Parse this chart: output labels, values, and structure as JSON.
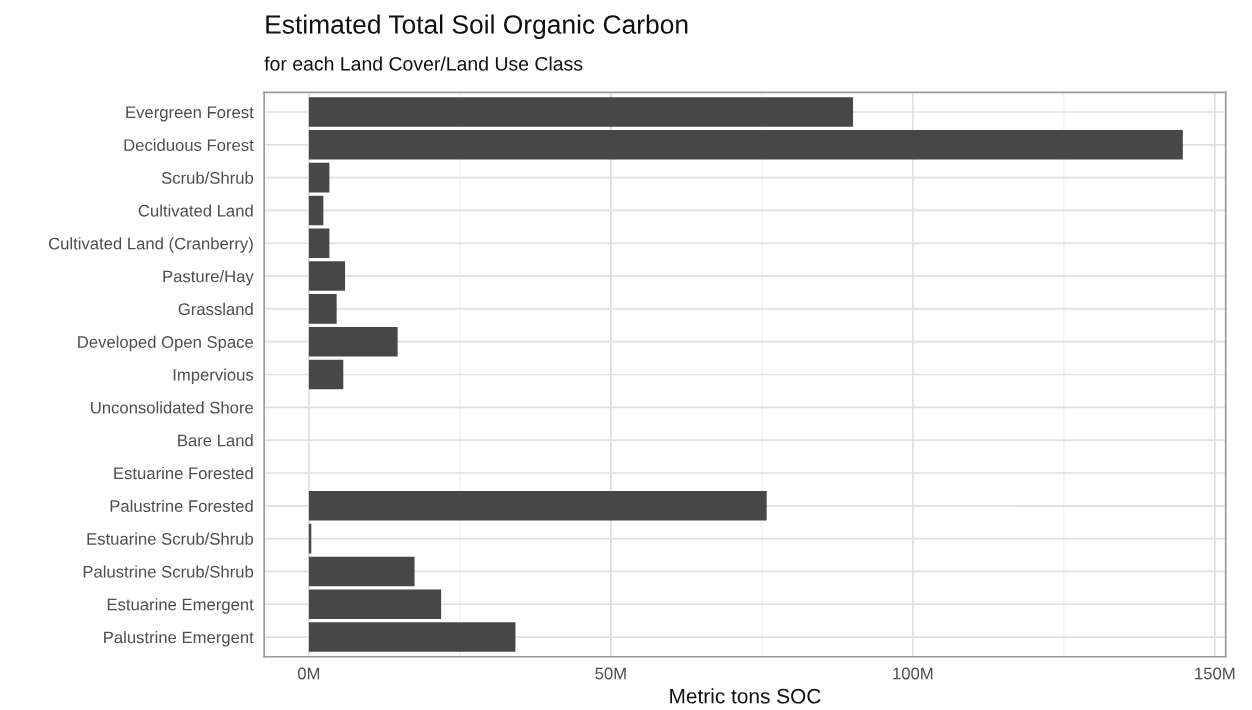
{
  "chart_data": {
    "type": "bar",
    "orientation": "horizontal",
    "title": "Estimated Total Soil Organic Carbon",
    "subtitle": "for each Land Cover/Land Use Class",
    "xlabel": "Metric tons SOC",
    "categories": [
      "Evergreen Forest",
      "Deciduous Forest",
      "Scrub/Shrub",
      "Cultivated Land",
      "Cultivated Land (Cranberry)",
      "Pasture/Hay",
      "Grassland",
      "Developed Open Space",
      "Impervious",
      "Unconsolidated Shore",
      "Bare Land",
      "Estuarine Forested",
      "Palustrine Forested",
      "Estuarine Scrub/Shrub",
      "Palustrine Scrub/Shrub",
      "Estuarine Emergent",
      "Palustrine Emergent"
    ],
    "values": [
      90.1,
      144.7,
      3.4,
      2.4,
      3.4,
      6.0,
      4.6,
      14.7,
      5.7,
      0,
      0,
      0,
      75.8,
      0.4,
      17.5,
      21.9,
      34.2
    ],
    "color": "#474747",
    "xlim": [
      -7.4,
      151.8
    ],
    "xticks": [
      {
        "value": 0,
        "label": "0M"
      },
      {
        "value": 50,
        "label": "50M"
      },
      {
        "value": 100,
        "label": "100M"
      },
      {
        "value": 150,
        "label": "150M"
      }
    ],
    "grid": true,
    "legend": false
  }
}
